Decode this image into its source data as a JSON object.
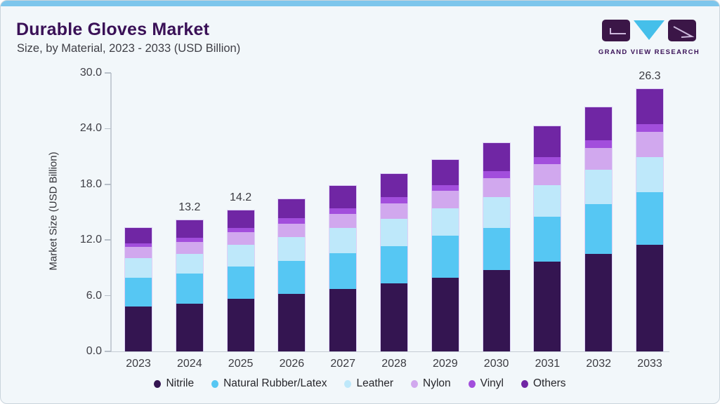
{
  "header": {
    "title": "Durable Gloves Market",
    "subtitle": "Size, by Material, 2023 - 2033 (USD Billion)"
  },
  "brand": {
    "name": "GRAND VIEW RESEARCH"
  },
  "colors": {
    "accent_bar": "#7DC6EC",
    "background": "#F2F7FA",
    "title_text": "#3A1157",
    "axis_line": "#C6CDD5"
  },
  "chart_data": {
    "type": "bar",
    "stacked": true,
    "title": "Durable Gloves Market Size, by Material, 2023 - 2033 (USD Billion)",
    "xlabel": "",
    "ylabel": "Market Size (USD Billion)",
    "ylim": [
      0,
      30
    ],
    "y_ticks": [
      0,
      6,
      12,
      18,
      24,
      30
    ],
    "grid": false,
    "legend_position": "bottom",
    "categories": [
      "2023",
      "2024",
      "2025",
      "2026",
      "2027",
      "2028",
      "2029",
      "2030",
      "2031",
      "2032",
      "2033"
    ],
    "series": [
      {
        "name": "Nitrile",
        "color": "#341551",
        "values": [
          4.5,
          4.8,
          5.3,
          5.8,
          6.3,
          6.8,
          7.4,
          8.2,
          9.0,
          9.8,
          10.7
        ]
      },
      {
        "name": "Natural Rubber/Latex",
        "color": "#56C7F3",
        "values": [
          2.9,
          3.0,
          3.2,
          3.3,
          3.6,
          3.8,
          4.2,
          4.2,
          4.5,
          5.0,
          5.3
        ]
      },
      {
        "name": "Leather",
        "color": "#BEE8FA",
        "values": [
          2.0,
          2.0,
          2.2,
          2.4,
          2.5,
          2.7,
          2.8,
          3.1,
          3.2,
          3.4,
          3.5
        ]
      },
      {
        "name": "Nylon",
        "color": "#D1A8EE",
        "values": [
          1.1,
          1.2,
          1.3,
          1.3,
          1.4,
          1.6,
          1.7,
          1.9,
          2.1,
          2.2,
          2.5
        ]
      },
      {
        "name": "Vinyl",
        "color": "#A24EDC",
        "values": [
          0.4,
          0.4,
          0.4,
          0.6,
          0.6,
          0.6,
          0.6,
          0.7,
          0.7,
          0.8,
          0.8
        ]
      },
      {
        "name": "Others",
        "color": "#7026A4",
        "values": [
          1.5,
          1.8,
          1.8,
          1.9,
          2.2,
          2.3,
          2.5,
          2.8,
          3.1,
          3.3,
          3.5
        ]
      }
    ],
    "totals": [
      12.4,
      13.2,
      14.2,
      15.3,
      16.6,
      17.8,
      19.2,
      20.9,
      22.6,
      24.5,
      26.3
    ],
    "total_labels": [
      {
        "category": "2024",
        "text": "13.2"
      },
      {
        "category": "2025",
        "text": "14.2"
      },
      {
        "category": "2033",
        "text": "26.3"
      }
    ]
  }
}
